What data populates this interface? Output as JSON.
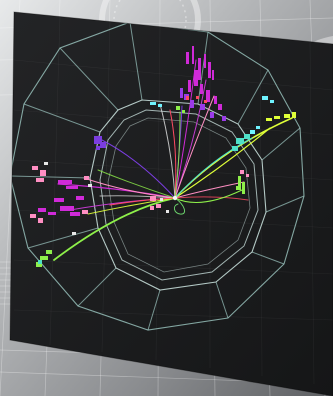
{
  "image": {
    "type": "particle-collision-event-display",
    "colors": {
      "backdrop_light": "#d9dbdd",
      "backdrop_dark": "#6f7275",
      "panel_bg": "#1c1d1f",
      "detector_lines": "#9ec9c3",
      "track_magenta": "#d02ad8",
      "track_violet": "#7b3de0",
      "track_yellow": "#dfff38",
      "track_green": "#8ef04a",
      "track_teal": "#4fe0c8",
      "track_pink": "#ff8fc3",
      "track_red": "#ff4a63",
      "hit_cyan": "#6ff3ff"
    }
  }
}
